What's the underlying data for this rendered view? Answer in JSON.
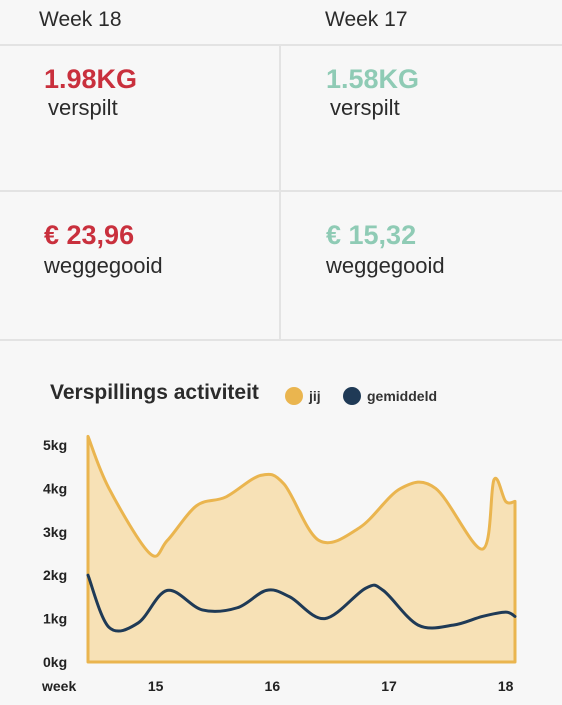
{
  "header": {
    "current_week": "Week 18",
    "previous_week": "Week 17"
  },
  "stats": {
    "current": {
      "weight_value": "1.98KG",
      "weight_label": "verspilt",
      "money_value": "€ 23,96",
      "money_label": "weggegooid"
    },
    "previous": {
      "weight_value": "1.58KG",
      "weight_label": "verspilt",
      "money_value": "€ 15,32",
      "money_label": "weggegooid"
    }
  },
  "colors": {
    "worse": "#c9303d",
    "better": "#8fcbb5",
    "you_line": "#eab54f",
    "you_fill": "#f7e1b6",
    "average_line": "#1f3a56"
  },
  "chart": {
    "title": "Verspillings activiteit",
    "legend": [
      {
        "label": "jij",
        "color": "#eab54f"
      },
      {
        "label": "gemiddeld",
        "color": "#1f3a56"
      }
    ]
  },
  "chart_data": {
    "type": "area",
    "title": "Verspillings activiteit",
    "xlabel": "week",
    "ylabel": "",
    "x_ticks": [
      "15",
      "16",
      "17",
      "18"
    ],
    "y_ticks": [
      "0kg",
      "1kg",
      "2kg",
      "3kg",
      "4kg",
      "5kg"
    ],
    "xlim": [
      14.42,
      18.08
    ],
    "ylim": [
      0,
      5
    ],
    "grid": false,
    "legend_position": "top",
    "series": [
      {
        "name": "jij",
        "color": "#eab54f",
        "style": "area",
        "x": [
          14.42,
          14.6,
          14.95,
          15.1,
          15.35,
          15.6,
          15.9,
          16.1,
          16.4,
          16.75,
          17.1,
          17.4,
          17.8,
          17.9,
          18.0,
          18.08
        ],
        "y": [
          5.2,
          4.0,
          2.5,
          2.8,
          3.6,
          3.8,
          4.3,
          4.1,
          2.8,
          3.1,
          4.0,
          4.0,
          2.6,
          4.2,
          3.7,
          3.7
        ]
      },
      {
        "name": "gemiddeld",
        "color": "#1f3a56",
        "style": "line",
        "x": [
          14.42,
          14.6,
          14.85,
          15.1,
          15.4,
          15.7,
          15.95,
          16.15,
          16.45,
          16.8,
          16.95,
          17.25,
          17.55,
          17.8,
          18.0,
          18.08
        ],
        "y": [
          2.0,
          0.8,
          0.9,
          1.65,
          1.2,
          1.25,
          1.65,
          1.5,
          1.0,
          1.7,
          1.65,
          0.85,
          0.85,
          1.05,
          1.15,
          1.05
        ]
      }
    ]
  }
}
